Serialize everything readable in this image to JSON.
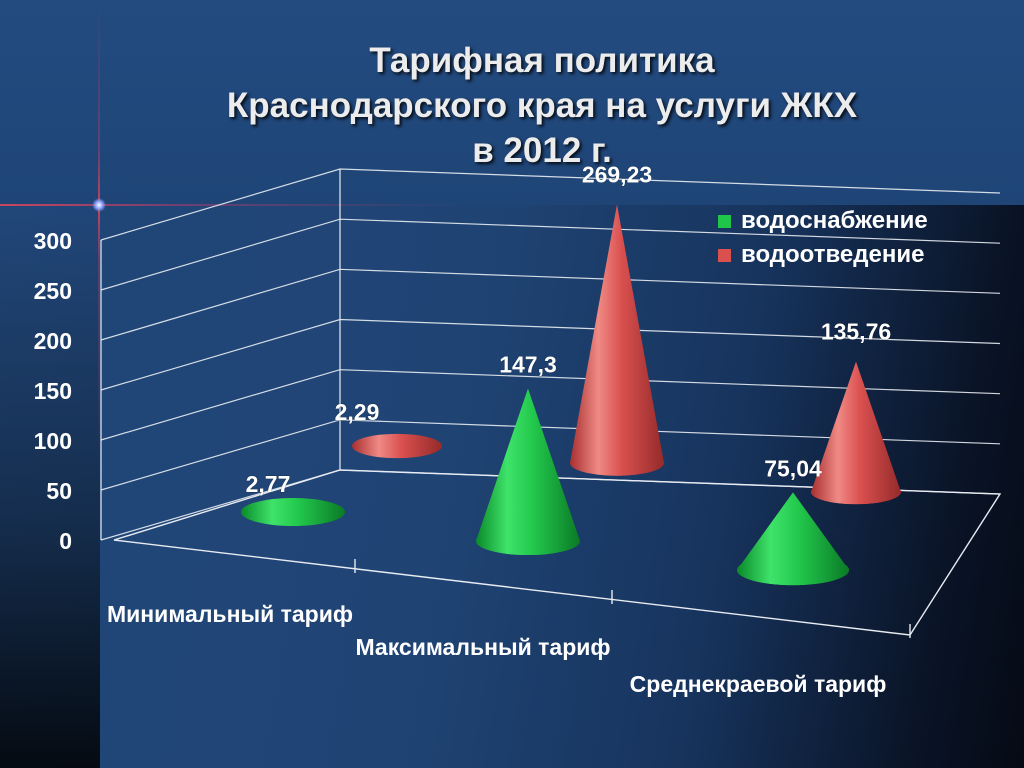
{
  "title": {
    "line1": "Тарифная политика",
    "line2": "Краснодарского края на услуги ЖКХ",
    "line3": "в 2012 г."
  },
  "chart_data": {
    "type": "bar",
    "style": "3d-cone",
    "title": "Тарифная политика Краснодарского края на услуги ЖКХ в 2012 г.",
    "categories": [
      "Минимальный тариф",
      "Максимальный тариф",
      "Среднекраевой тариф"
    ],
    "series": [
      {
        "name": "водоснабжение",
        "color": "#1fc64a",
        "values": [
          2.77,
          147.3,
          75.04
        ],
        "labels": [
          "2,77",
          "147,3",
          "75,04"
        ]
      },
      {
        "name": "водоотведение",
        "color": "#d9504f",
        "values": [
          2.29,
          269.23,
          135.76
        ],
        "labels": [
          "2,29",
          "269,23",
          "135,76"
        ]
      }
    ],
    "y_ticks": [
      "0",
      "50",
      "100",
      "150",
      "200",
      "250",
      "300"
    ],
    "ylim": [
      0,
      300
    ],
    "grid": true,
    "legend_position": "top-right"
  }
}
